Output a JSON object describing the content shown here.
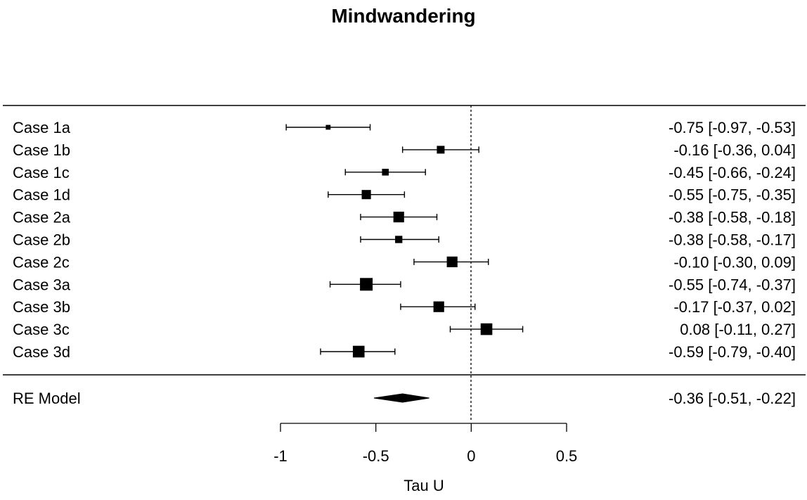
{
  "chart_data": {
    "type": "forest",
    "title": "Mindwandering",
    "xlabel": "Tau U",
    "xlim": [
      -1,
      0.5
    ],
    "xticks": [
      -1,
      -0.5,
      0,
      0.5
    ],
    "xtick_labels": [
      "-1",
      "-0.5",
      "0",
      "0.5"
    ],
    "reference_line": 0,
    "studies": [
      {
        "label": "Case 1a",
        "estimate": -0.75,
        "ci_lower": -0.97,
        "ci_upper": -0.53,
        "text": "-0.75 [-0.97, -0.53]",
        "weight": 0.2
      },
      {
        "label": "Case 1b",
        "estimate": -0.16,
        "ci_lower": -0.36,
        "ci_upper": 0.04,
        "text": "-0.16 [-0.36,  0.04]",
        "weight": 0.5
      },
      {
        "label": "Case 1c",
        "estimate": -0.45,
        "ci_lower": -0.66,
        "ci_upper": -0.24,
        "text": "-0.45 [-0.66, -0.24]",
        "weight": 0.4
      },
      {
        "label": "Case 1d",
        "estimate": -0.55,
        "ci_lower": -0.75,
        "ci_upper": -0.35,
        "text": "-0.55 [-0.75, -0.35]",
        "weight": 0.65
      },
      {
        "label": "Case 2a",
        "estimate": -0.38,
        "ci_lower": -0.58,
        "ci_upper": -0.18,
        "text": "-0.38 [-0.58, -0.18]",
        "weight": 0.8
      },
      {
        "label": "Case 2b",
        "estimate": -0.38,
        "ci_lower": -0.58,
        "ci_upper": -0.17,
        "text": "-0.38 [-0.58, -0.17]",
        "weight": 0.45
      },
      {
        "label": "Case 2c",
        "estimate": -0.1,
        "ci_lower": -0.3,
        "ci_upper": 0.09,
        "text": "-0.10 [-0.30,  0.09]",
        "weight": 0.8
      },
      {
        "label": "Case 3a",
        "estimate": -0.55,
        "ci_lower": -0.74,
        "ci_upper": -0.37,
        "text": "-0.55 [-0.74, -0.37]",
        "weight": 1.0
      },
      {
        "label": "Case 3b",
        "estimate": -0.17,
        "ci_lower": -0.37,
        "ci_upper": 0.02,
        "text": "-0.17 [-0.37,  0.02]",
        "weight": 0.8
      },
      {
        "label": "Case 3c",
        "estimate": 0.08,
        "ci_lower": -0.11,
        "ci_upper": 0.27,
        "text": "0.08 [-0.11,  0.27]",
        "weight": 0.9
      },
      {
        "label": "Case 3d",
        "estimate": -0.59,
        "ci_lower": -0.79,
        "ci_upper": -0.4,
        "text": "-0.59 [-0.79, -0.40]",
        "weight": 0.9
      }
    ],
    "summary": {
      "label": "RE Model",
      "estimate": -0.36,
      "ci_lower": -0.51,
      "ci_upper": -0.22,
      "text": "-0.36 [-0.51, -0.22]"
    },
    "colors": {
      "ink": "#000000",
      "background": "#ffffff"
    }
  }
}
